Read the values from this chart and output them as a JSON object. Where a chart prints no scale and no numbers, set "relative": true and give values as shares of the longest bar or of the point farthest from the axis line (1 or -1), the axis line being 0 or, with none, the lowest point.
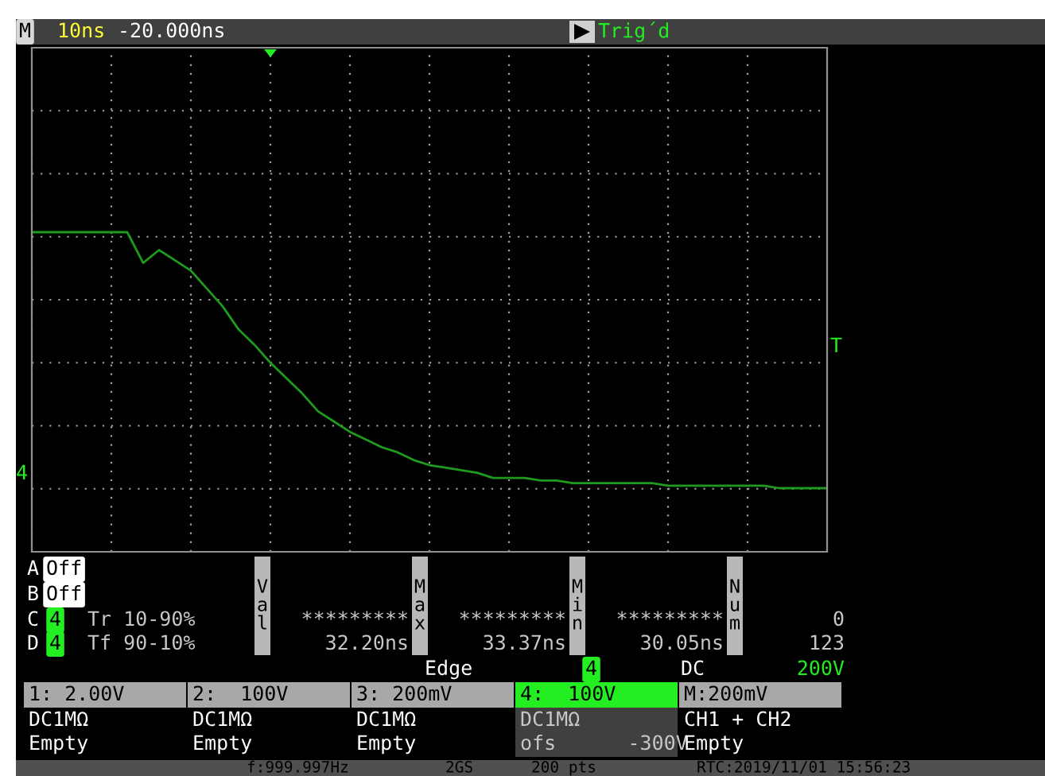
{
  "chart_data": {
    "type": "line",
    "relative": true,
    "grid": true,
    "categories": [
      null,
      null,
      null,
      null,
      null,
      null,
      null,
      null,
      null,
      null,
      null,
      null,
      null,
      null,
      null,
      null,
      null,
      null,
      null,
      null,
      null,
      null,
      null,
      null,
      null,
      null,
      null,
      null,
      null,
      null,
      null,
      null,
      null,
      null,
      null,
      null,
      null,
      null,
      null,
      null,
      null,
      null,
      null,
      null,
      null,
      null,
      null,
      null,
      null,
      null,
      null
    ],
    "series": [
      {
        "color": "#1f9a1f",
        "values": [
          1.0,
          1.0,
          1.0,
          1.0,
          1.0,
          1.0,
          1.0,
          0.88,
          0.93,
          0.89,
          0.85,
          0.78,
          0.71,
          0.62,
          0.56,
          0.49,
          0.43,
          0.37,
          0.3,
          0.26,
          0.22,
          0.19,
          0.16,
          0.14,
          0.11,
          0.09,
          0.08,
          0.07,
          0.06,
          0.04,
          0.04,
          0.04,
          0.03,
          0.03,
          0.02,
          0.02,
          0.02,
          0.02,
          0.02,
          0.02,
          0.01,
          0.01,
          0.01,
          0.01,
          0.01,
          0.01,
          0.01,
          0.0,
          0.0,
          0.0,
          0.0
        ]
      }
    ],
    "annotations": [
      "M",
      "10ns",
      "-20.000ns",
      "Trig´d",
      "T",
      "4",
      "A",
      "Off",
      "B",
      "Off",
      "C",
      "4",
      "Tr 10-90%",
      "D",
      "4",
      "Tf 90-10%",
      "Val",
      "Max",
      "Min",
      "Num",
      "*********",
      "*********",
      "*********",
      "0",
      "32.20ns",
      "33.37ns",
      "30.05ns",
      "123",
      "Edge",
      "4",
      "DC",
      "200V",
      "1: 2.00V",
      "2:  100V",
      "3: 200mV",
      "4:  100V",
      "M:200mV",
      "DC1MΩ",
      "DC1MΩ",
      "DC1MΩ",
      "DC1MΩ",
      "CH1 + CH2",
      "Empty",
      "Empty",
      "Empty",
      "ofs      -300V",
      "Empty",
      "f:999.997Hz",
      "2GS",
      "200 pts",
      "RTC:2019/11/01 15:56:23"
    ]
  }
}
